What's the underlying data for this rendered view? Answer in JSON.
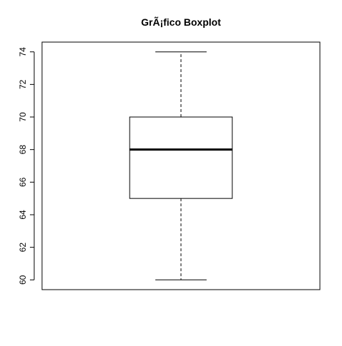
{
  "chart_data": {
    "type": "boxplot",
    "title": "GrÃ¡fico Boxplot",
    "xlabel": "",
    "ylabel": "",
    "ylim": [
      59.4,
      74.6
    ],
    "yticks": [
      60,
      62,
      64,
      66,
      68,
      70,
      72,
      74
    ],
    "ytick_labels": [
      "60",
      "62",
      "64",
      "66",
      "68",
      "70",
      "72",
      "74"
    ],
    "grid": false,
    "box": {
      "min": 60,
      "q1": 65,
      "median": 68,
      "q3": 70,
      "max": 74
    }
  }
}
